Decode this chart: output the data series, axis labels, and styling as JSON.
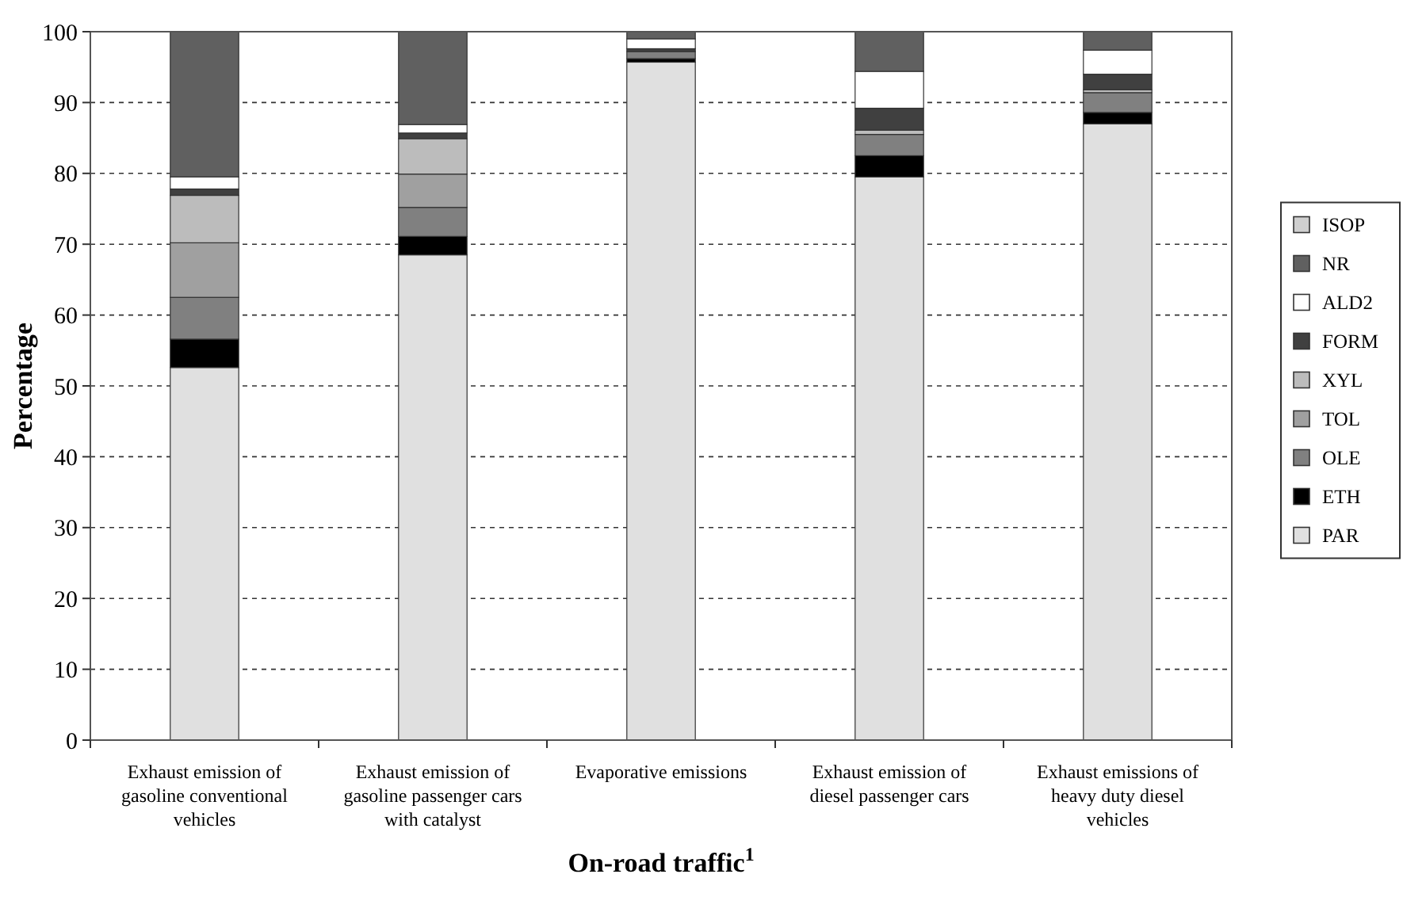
{
  "chart_data": {
    "type": "bar",
    "stacked": true,
    "xlabel": "On-road traffic$^{1}$",
    "ylabel": "Percentage",
    "categories": [
      "Exhaust emission of gasoline conventional vehicles",
      "Exhaust emission of gasoline passenger cars with catalyst",
      "Evaporative emissions",
      "Exhaust emission of diesel passenger cars",
      "Exhaust emissions of heavy duty diesel vehicles"
    ],
    "series": [
      {
        "name": "PAR",
        "color": "#e0e0e0",
        "values": [
          52.6,
          68.5,
          95.7,
          79.5,
          87.0
        ]
      },
      {
        "name": "ETH",
        "color": "#000000",
        "values": [
          4.0,
          2.6,
          0.5,
          3.0,
          1.6
        ]
      },
      {
        "name": "OLE",
        "color": "#808080",
        "values": [
          5.9,
          4.1,
          1.0,
          3.0,
          2.8
        ]
      },
      {
        "name": "TOL",
        "color": "#a0a0a0",
        "values": [
          7.7,
          4.7,
          0,
          0,
          0
        ]
      },
      {
        "name": "XYL",
        "color": "#bcbcbc",
        "values": [
          6.7,
          5.0,
          0,
          0.6,
          0.4
        ]
      },
      {
        "name": "FORM",
        "color": "#404040",
        "values": [
          0.9,
          0.8,
          0.4,
          3.1,
          2.2
        ]
      },
      {
        "name": "ALD2",
        "color": "#ffffff",
        "values": [
          1.7,
          1.2,
          1.4,
          5.2,
          3.4
        ]
      },
      {
        "name": "NR",
        "color": "#606060",
        "values": [
          20.5,
          13.1,
          1.0,
          5.6,
          2.6
        ]
      },
      {
        "name": "ISOP",
        "color": "#cfcfcf",
        "values": [
          0,
          0,
          0,
          0,
          0
        ]
      }
    ],
    "ylim": [
      0,
      100
    ],
    "yticks": [
      0,
      10,
      20,
      30,
      40,
      50,
      60,
      70,
      80,
      90,
      100
    ],
    "grid": "y",
    "legend": "right"
  }
}
